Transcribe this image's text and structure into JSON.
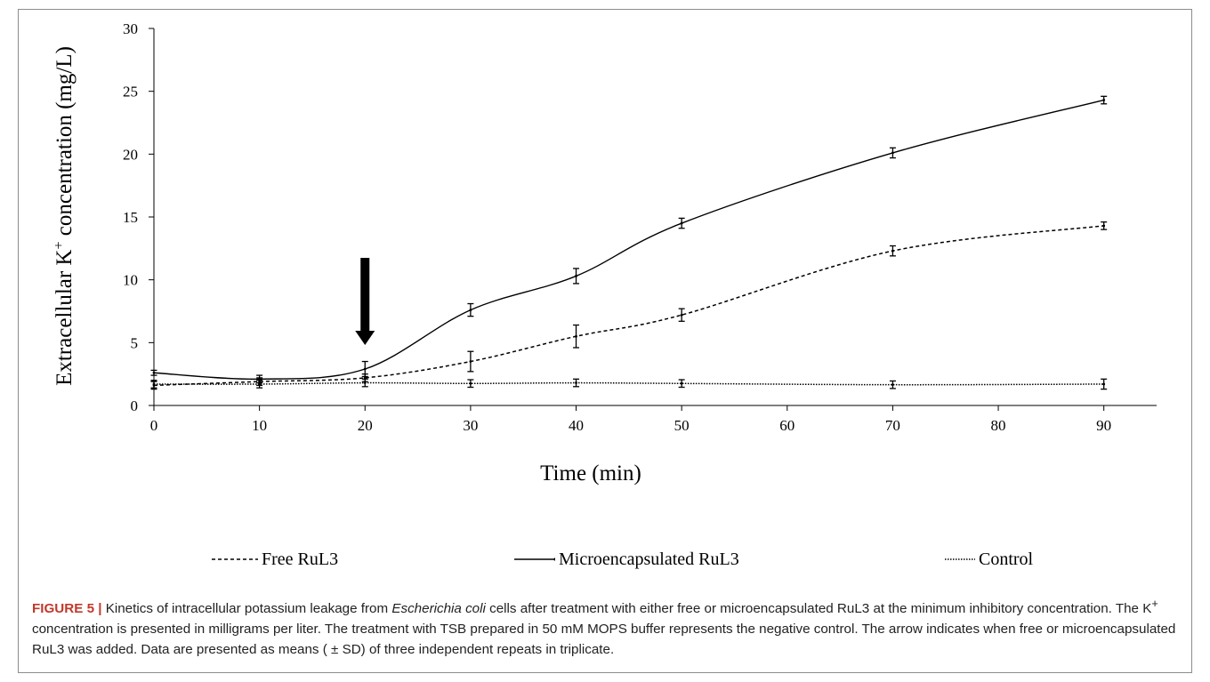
{
  "chart_data": {
    "type": "line",
    "xlabel": "Time (min)",
    "ylabel_main": "Extracellular K",
    "ylabel_sup": "+",
    "ylabel_rest": " concentration (mg/L)",
    "xlim": [
      0,
      95
    ],
    "ylim": [
      0,
      30
    ],
    "x_ticks": [
      0,
      10,
      20,
      30,
      40,
      50,
      60,
      70,
      80,
      90
    ],
    "y_ticks": [
      0,
      5,
      10,
      15,
      20,
      25,
      30
    ],
    "grid": false,
    "legend_position": "bottom",
    "annotation": {
      "type": "arrow",
      "x": 20,
      "label": "",
      "description": "treatment added"
    },
    "series": [
      {
        "name": "Free RuL3",
        "style": "dashed",
        "x": [
          0,
          10,
          20,
          30,
          40,
          50,
          70,
          90
        ],
        "y": [
          1.6,
          1.9,
          2.2,
          3.5,
          5.5,
          7.2,
          12.3,
          14.3
        ],
        "err": [
          0.3,
          0.3,
          0.3,
          0.8,
          0.9,
          0.5,
          0.4,
          0.3
        ]
      },
      {
        "name": "Microencapsulated RuL3",
        "style": "solid",
        "x": [
          0,
          10,
          20,
          30,
          40,
          50,
          70,
          90
        ],
        "y": [
          2.6,
          2.1,
          2.9,
          7.6,
          10.3,
          14.5,
          20.1,
          24.3
        ],
        "err": [
          0.2,
          0.3,
          0.6,
          0.5,
          0.6,
          0.4,
          0.4,
          0.3
        ]
      },
      {
        "name": "Control",
        "style": "dotted",
        "x": [
          0,
          10,
          20,
          30,
          40,
          50,
          70,
          90
        ],
        "y": [
          1.7,
          1.7,
          1.8,
          1.75,
          1.8,
          1.75,
          1.65,
          1.7
        ],
        "err": [
          0.3,
          0.3,
          0.3,
          0.3,
          0.3,
          0.3,
          0.3,
          0.4
        ]
      }
    ]
  },
  "legend": {
    "free": "Free RuL3",
    "micro": "Microencapsulated RuL3",
    "control": "Control"
  },
  "caption": {
    "label": "FIGURE 5 |",
    "text1": " Kinetics of intracellular potassium leakage from ",
    "organism": "Escherichia coli",
    "text2": " cells after treatment with either free or microencapsulated RuL3 at the minimum inhibitory concentration. The K",
    "sup": "+",
    "text3": " concentration is presented in milligrams per liter. The treatment with TSB prepared in 50 mM MOPS buffer represents the negative control. The arrow indicates when free or microencapsulated RuL3 was added. Data are presented as means ( ± SD) of three independent repeats in triplicate."
  }
}
